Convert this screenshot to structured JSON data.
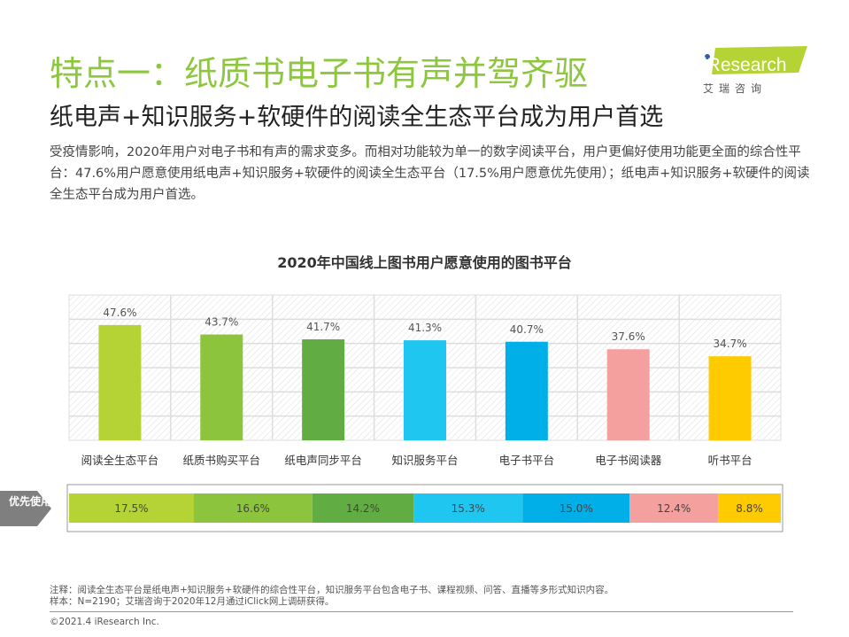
{
  "header": {
    "title": "特点一：纸质书电子书有声并驾齐驱",
    "subtitle": "纸电声+知识服务+软硬件的阅读全生态平台成为用户首选",
    "description": "受疫情影响，2020年用户对电子书和有声的需求变多。而相对功能较为单一的数字阅读平台，用户更偏好使用功能更全面的综合性平台：47.6%用户愿意使用纸电声+知识服务+软硬件的阅读全生态平台（17.5%用户愿意优先使用）；纸电声+知识服务+软硬件的阅读全生态平台成为用户首选。"
  },
  "logo": {
    "text": "iResearch",
    "sub": "艾 瑞 咨 询",
    "color": "#b5d334"
  },
  "chart_data": [
    {
      "type": "bar",
      "title": "2020年中国线上图书用户愿意使用的图书平台",
      "categories": [
        "阅读全生态平台",
        "纸质书购买平台",
        "纸电声同步平台",
        "知识服务平台",
        "电子书平台",
        "电子书阅读器",
        "听书平台"
      ],
      "values": [
        47.6,
        43.7,
        41.7,
        41.3,
        40.7,
        37.6,
        34.7
      ],
      "labels": [
        "47.6%",
        "43.7%",
        "41.7%",
        "41.3%",
        "40.7%",
        "37.6%",
        "34.7%"
      ],
      "colors": [
        "#b5d334",
        "#8cc43e",
        "#62ad43",
        "#1fc6ef",
        "#00aee8",
        "#f4a09f",
        "#fdcb00"
      ],
      "ylim": [
        0,
        60
      ],
      "grid": true
    },
    {
      "type": "bar",
      "orientation": "horizontal-stacked",
      "label": "优先使用",
      "categories": [
        "阅读全生态平台",
        "纸质书购买平台",
        "纸电声同步平台",
        "知识服务平台",
        "电子书平台",
        "电子书阅读器",
        "听书平台"
      ],
      "values": [
        17.5,
        16.6,
        14.2,
        15.3,
        15.0,
        12.4,
        8.8
      ],
      "labels": [
        "17.5%",
        "16.6%",
        "14.2%",
        "15.3%",
        "15.0%",
        "12.4%",
        "8.8%"
      ]
    }
  ],
  "notes": [
    "注释：阅读全生态平台是纸电声+知识服务+软硬件的综合性平台，知识服务平台包含电子书、课程视频、问答、直播等多形式知识内容。",
    "样本：N=2190；艾瑞咨询于2020年12月通过iClick网上调研获得。"
  ],
  "copyright": "©2021.4 iResearch Inc."
}
